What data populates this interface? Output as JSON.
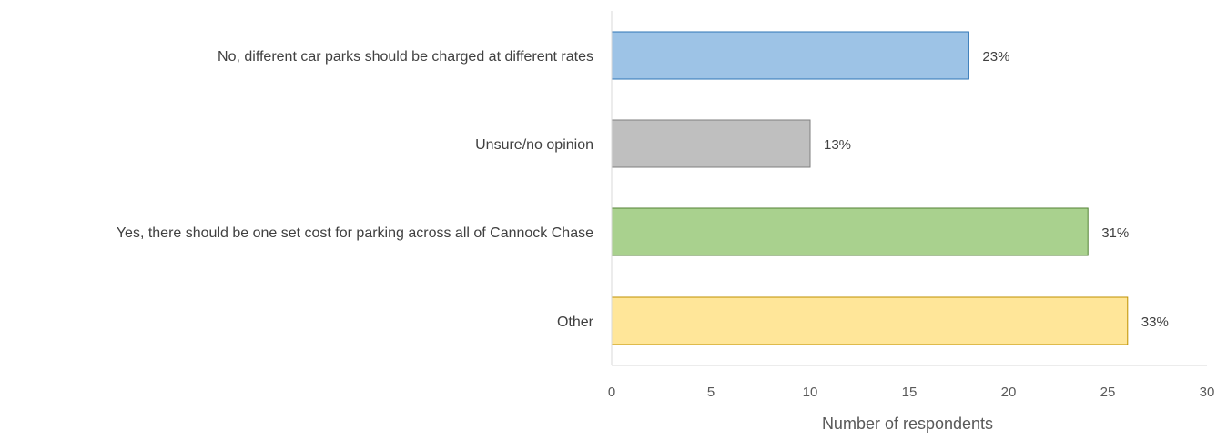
{
  "chart_data": {
    "type": "bar",
    "orientation": "horizontal",
    "categories": [
      "No, different car parks should be charged at different rates",
      "Unsure/no opinion",
      "Yes, there should be one set cost for parking across all of Cannock Chase",
      "Other"
    ],
    "values": [
      18,
      10,
      24,
      26
    ],
    "data_labels": [
      "23%",
      "13%",
      "31%",
      "33%"
    ],
    "bar_colors": [
      "#9DC3E6",
      "#BFBFBF",
      "#A9D18E",
      "#FFE699"
    ],
    "bar_border_colors": [
      "#2E75B6",
      "#7F7F7F",
      "#548235",
      "#BF9000"
    ],
    "xlabel": "Number of respondents",
    "ylabel": "",
    "title": "",
    "xlim": [
      0,
      30
    ],
    "xticks": [
      0,
      5,
      10,
      15,
      20,
      25,
      30
    ],
    "grid": false,
    "legend": "none"
  }
}
